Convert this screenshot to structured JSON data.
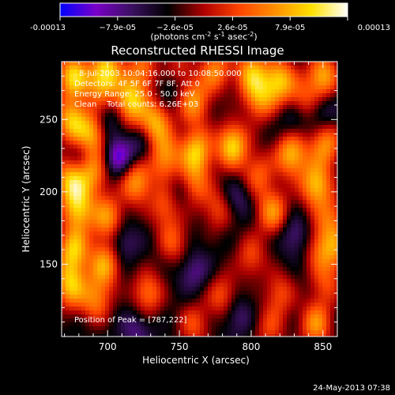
{
  "chart_data": {
    "type": "heatmap",
    "title": "Reconstructed RHESSI Image",
    "xlabel": "Heliocentric X (arcsec)",
    "ylabel": "Heliocentric Y (arcsec)",
    "xlim": [
      668,
      860
    ],
    "ylim": [
      100,
      290
    ],
    "x_ticks": [
      700,
      750,
      800,
      850
    ],
    "y_ticks": [
      150,
      200,
      250
    ],
    "colorbar": {
      "range": [
        -0.00013,
        0.00013
      ],
      "tick_labels": [
        "-0.00013",
        "−7.9e-05",
        "−2.6e-05",
        "2.6e-05",
        "7.9e-05",
        "0.00013"
      ],
      "unit_parts": [
        "(photons cm",
        "-2",
        " s",
        "-1",
        " asec",
        "-2",
        ")"
      ],
      "colormap": [
        "#0000ff",
        "#7a00c8",
        "#3a1060",
        "#000000",
        "#b00000",
        "#ff4500",
        "#ff9000",
        "#ffe000",
        "#ffffff"
      ]
    },
    "annotations": {
      "time": "8-Jul-2003 10:04:16.000 to 10:08:50.000",
      "detectors": "Detectors: 4F 5F 6F 7F 8F, Att 0",
      "energy": "Energy Range: 25.0 - 50.0 keV",
      "clean": "Clean    Total counts: 6.26E+03",
      "peak": "Position of Peak = [787,222]"
    },
    "peak": {
      "x": 787,
      "y": 222
    },
    "sources": [
      {
        "x": 676,
        "y": 280,
        "a": 1.0
      },
      {
        "x": 700,
        "y": 285,
        "a": 0.8
      },
      {
        "x": 724,
        "y": 285,
        "a": 0.6
      },
      {
        "x": 748,
        "y": 284,
        "a": 0.5
      },
      {
        "x": 775,
        "y": 284,
        "a": 0.7
      },
      {
        "x": 800,
        "y": 283,
        "a": 0.8
      },
      {
        "x": 820,
        "y": 277,
        "a": 0.9
      },
      {
        "x": 836,
        "y": 262,
        "a": 0.5
      },
      {
        "x": 850,
        "y": 280,
        "a": 0.85
      },
      {
        "x": 695,
        "y": 272,
        "a": 0.55
      },
      {
        "x": 716,
        "y": 262,
        "a": 0.95
      },
      {
        "x": 760,
        "y": 262,
        "a": 0.75
      },
      {
        "x": 806,
        "y": 264,
        "a": 0.7
      },
      {
        "x": 675,
        "y": 248,
        "a": 0.9
      },
      {
        "x": 690,
        "y": 240,
        "a": 0.8
      },
      {
        "x": 733,
        "y": 247,
        "a": 0.85
      },
      {
        "x": 762,
        "y": 228,
        "a": 0.9
      },
      {
        "x": 787,
        "y": 232,
        "a": 1.0
      },
      {
        "x": 828,
        "y": 226,
        "a": 0.9
      },
      {
        "x": 852,
        "y": 233,
        "a": 0.75
      },
      {
        "x": 740,
        "y": 224,
        "a": 0.75
      },
      {
        "x": 690,
        "y": 214,
        "a": 0.7
      },
      {
        "x": 720,
        "y": 207,
        "a": 0.8
      },
      {
        "x": 674,
        "y": 208,
        "a": 0.9
      },
      {
        "x": 805,
        "y": 212,
        "a": 0.55
      },
      {
        "x": 760,
        "y": 205,
        "a": 0.6
      },
      {
        "x": 845,
        "y": 205,
        "a": 0.9
      },
      {
        "x": 680,
        "y": 188,
        "a": 0.85
      },
      {
        "x": 700,
        "y": 182,
        "a": 0.75
      },
      {
        "x": 740,
        "y": 190,
        "a": 0.55
      },
      {
        "x": 777,
        "y": 188,
        "a": 0.5
      },
      {
        "x": 815,
        "y": 186,
        "a": 0.75
      },
      {
        "x": 855,
        "y": 182,
        "a": 0.55
      },
      {
        "x": 676,
        "y": 160,
        "a": 0.9
      },
      {
        "x": 698,
        "y": 150,
        "a": 0.8
      },
      {
        "x": 746,
        "y": 165,
        "a": 0.5
      },
      {
        "x": 800,
        "y": 155,
        "a": 0.5
      },
      {
        "x": 848,
        "y": 160,
        "a": 0.5
      },
      {
        "x": 674,
        "y": 135,
        "a": 0.9
      },
      {
        "x": 692,
        "y": 125,
        "a": 0.65
      },
      {
        "x": 728,
        "y": 130,
        "a": 0.65
      },
      {
        "x": 780,
        "y": 128,
        "a": 0.55
      },
      {
        "x": 820,
        "y": 130,
        "a": 0.5
      },
      {
        "x": 852,
        "y": 136,
        "a": 0.45
      },
      {
        "x": 760,
        "y": 108,
        "a": 0.5
      },
      {
        "x": 813,
        "y": 105,
        "a": 0.45
      },
      {
        "x": 845,
        "y": 108,
        "a": 0.75
      },
      {
        "x": 860,
        "y": 160,
        "a": 0.5
      }
    ],
    "sinks": [
      {
        "x": 707,
        "y": 224,
        "a": 1.0
      },
      {
        "x": 700,
        "y": 250,
        "a": 0.6
      },
      {
        "x": 745,
        "y": 275,
        "a": 0.6
      },
      {
        "x": 725,
        "y": 232,
        "a": 0.55
      },
      {
        "x": 830,
        "y": 250,
        "a": 0.55
      },
      {
        "x": 850,
        "y": 255,
        "a": 0.5
      },
      {
        "x": 750,
        "y": 200,
        "a": 0.45
      },
      {
        "x": 790,
        "y": 195,
        "a": 0.5
      },
      {
        "x": 710,
        "y": 165,
        "a": 0.55
      },
      {
        "x": 760,
        "y": 145,
        "a": 0.55
      },
      {
        "x": 830,
        "y": 170,
        "a": 0.55
      },
      {
        "x": 720,
        "y": 105,
        "a": 0.5
      },
      {
        "x": 790,
        "y": 115,
        "a": 0.5
      },
      {
        "x": 680,
        "y": 225,
        "a": 0.5
      }
    ]
  },
  "footer": {
    "timestamp": "24-May-2013 07:38"
  }
}
